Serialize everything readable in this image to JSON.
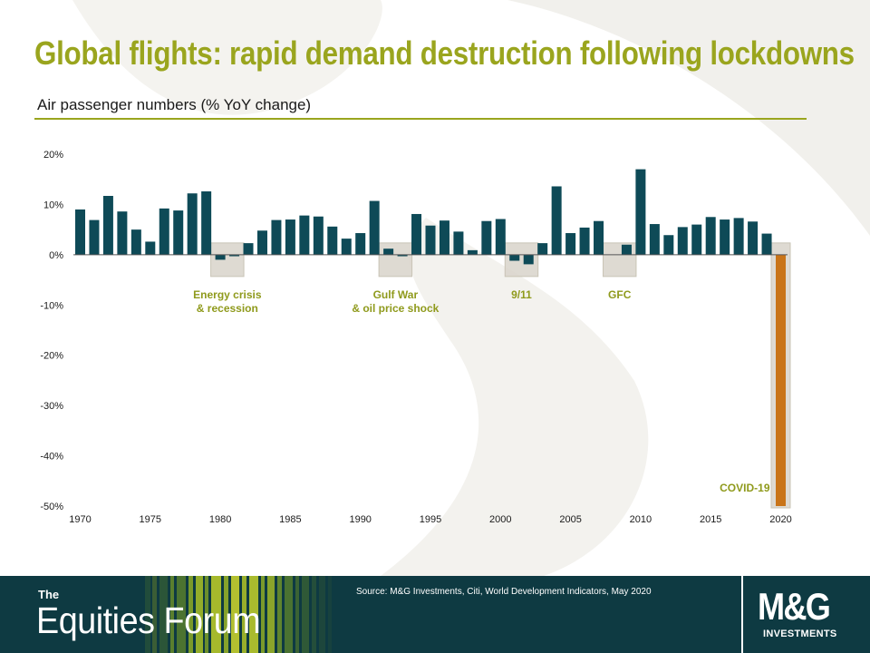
{
  "title": "Global flights: rapid demand destruction following lockdowns",
  "subtitle": "Air passenger numbers (% YoY change)",
  "colors": {
    "accent": "#9aa51e",
    "bar": "#0e4a57",
    "highlight": "#c97418",
    "annotation_box": "#d8d4ca",
    "footer": "#0e3a42"
  },
  "chart_data": {
    "type": "bar",
    "x": [
      1970,
      1971,
      1972,
      1973,
      1974,
      1975,
      1976,
      1977,
      1978,
      1979,
      1980,
      1981,
      1982,
      1983,
      1984,
      1985,
      1986,
      1987,
      1988,
      1989,
      1990,
      1991,
      1992,
      1993,
      1994,
      1995,
      1996,
      1997,
      1998,
      1999,
      2000,
      2001,
      2002,
      2003,
      2004,
      2005,
      2006,
      2007,
      2008,
      2009,
      2010,
      2011,
      2012,
      2013,
      2014,
      2015,
      2016,
      2017,
      2018,
      2019,
      2020
    ],
    "values": [
      9.0,
      6.9,
      11.7,
      8.6,
      5.0,
      2.6,
      9.2,
      8.8,
      12.2,
      12.6,
      -1.0,
      -0.3,
      2.3,
      4.8,
      6.9,
      7.0,
      7.8,
      7.6,
      5.6,
      3.2,
      4.3,
      10.7,
      1.2,
      -0.3,
      8.1,
      5.8,
      6.8,
      4.6,
      0.9,
      6.7,
      7.1,
      -1.2,
      -1.9,
      2.3,
      13.6,
      4.3,
      5.4,
      6.7,
      0.0,
      2.0,
      17.0,
      6.1,
      3.9,
      5.5,
      6.0,
      7.5,
      7.0,
      7.3,
      6.6,
      4.2,
      -50.0
    ],
    "highlight_x": 2020,
    "ylim": [
      -50,
      20
    ],
    "yticks": [
      20,
      10,
      0,
      -10,
      -20,
      -30,
      -40,
      -50
    ],
    "ytick_labels": [
      "20%",
      "10%",
      "0%",
      "-10%",
      "-20%",
      "-30%",
      "-40%",
      "-50%"
    ],
    "xticks": [
      1970,
      1975,
      1980,
      1985,
      1990,
      1995,
      2000,
      2005,
      2010,
      2015,
      2020
    ],
    "xtick_labels": [
      "1970",
      "1975",
      "1980",
      "1985",
      "1990",
      "1995",
      "2000",
      "2005",
      "2010",
      "2015",
      "2020"
    ],
    "grid": false,
    "annotations": [
      {
        "text": "Energy crisis\n& recession",
        "x_from": 1980,
        "x_to": 1981
      },
      {
        "text": "Gulf War\n& oil price shock",
        "x_from": 1992,
        "x_to": 1993
      },
      {
        "text": "9/11",
        "x_from": 2001,
        "x_to": 2002
      },
      {
        "text": "GFC",
        "x_from": 2008,
        "x_to": 2009
      },
      {
        "text": "COVID-19",
        "x_from": 2020,
        "x_to": 2020
      }
    ]
  },
  "footer": {
    "brand_prefix": "The",
    "brand_name": "Equities Forum",
    "source": "Source: M&G Investments, Citi, World Development Indicators, May 2020",
    "logo_text": "M&G",
    "logo_subtext": "INVESTMENTS"
  }
}
